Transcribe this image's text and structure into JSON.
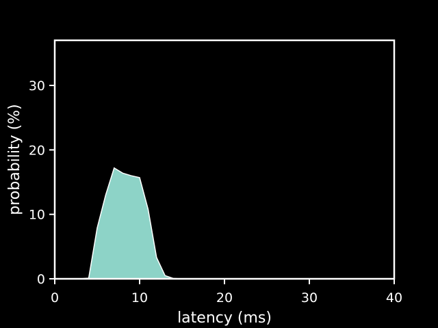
{
  "chart_data": {
    "type": "area",
    "title": "",
    "xlabel": "latency (ms)",
    "ylabel": "probability (%)",
    "xlim": [
      0,
      40
    ],
    "ylim": [
      0,
      37
    ],
    "xticks": [
      0,
      10,
      20,
      30,
      40
    ],
    "yticks": [
      0,
      10,
      20,
      30
    ],
    "grid": false,
    "colors": {
      "background": "#000000",
      "axes": "#ffffff",
      "fill": "#8dd3c7"
    },
    "series": [
      {
        "x": [
          3,
          4,
          5,
          6,
          7,
          8,
          9,
          10,
          11,
          12,
          13,
          14,
          15
        ],
        "values": [
          0,
          0.1,
          7.9,
          13.0,
          17.2,
          16.4,
          16.0,
          15.7,
          10.8,
          3.3,
          0.5,
          0.05,
          0
        ]
      }
    ]
  }
}
